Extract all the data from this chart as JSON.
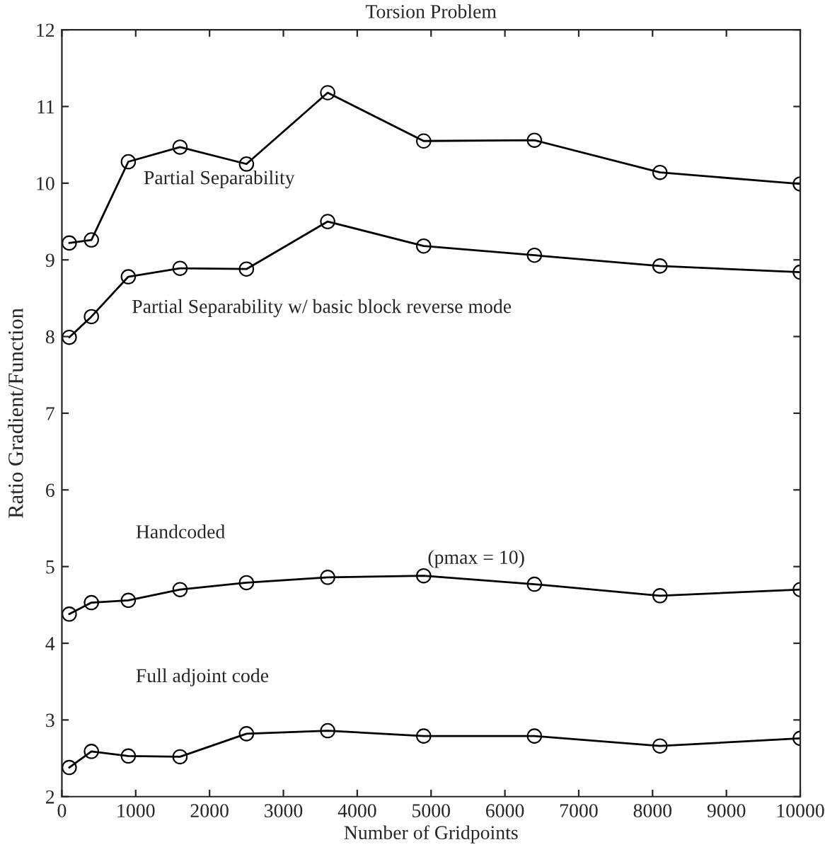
{
  "chart_data": {
    "type": "line",
    "title": "Torsion Problem",
    "xlabel": "Number of Gridpoints",
    "ylabel": "Ratio Gradient/Function",
    "x": [
      100,
      400,
      900,
      1600,
      2500,
      3600,
      4900,
      6400,
      8100,
      10000
    ],
    "series": [
      {
        "name": "Partial Separability",
        "color": "#000000",
        "values": [
          9.22,
          9.26,
          10.28,
          10.47,
          10.25,
          11.18,
          10.55,
          10.56,
          10.14,
          9.99
        ]
      },
      {
        "name": "Partial Separability w/ basic block reverse mode",
        "color": "#000000",
        "values": [
          7.99,
          8.26,
          8.78,
          8.89,
          8.88,
          9.5,
          9.18,
          9.06,
          8.92,
          8.84
        ]
      },
      {
        "name": "Handcoded",
        "color": "#000000",
        "values": [
          4.38,
          4.53,
          4.56,
          4.7,
          4.79,
          4.86,
          4.88,
          4.77,
          4.62,
          4.7
        ]
      },
      {
        "name": "Full adjoint code",
        "color": "#000000",
        "values": [
          2.38,
          2.59,
          2.53,
          2.52,
          2.82,
          2.86,
          2.79,
          2.79,
          2.66,
          2.76
        ]
      }
    ],
    "annotations": [
      {
        "text": "(pmax = 10)",
        "x": 4900,
        "y": 4.88
      }
    ],
    "xlim": [
      0,
      10000
    ],
    "xticks": [
      0,
      1000,
      2000,
      3000,
      4000,
      5000,
      6000,
      7000,
      8000,
      9000,
      10000
    ],
    "ylim": [
      2,
      12
    ],
    "yticks": [
      2,
      3,
      4,
      5,
      6,
      7,
      8,
      9,
      10,
      11,
      12
    ],
    "marker": "circle",
    "line_style": "solid",
    "grid": false,
    "legend": false
  }
}
